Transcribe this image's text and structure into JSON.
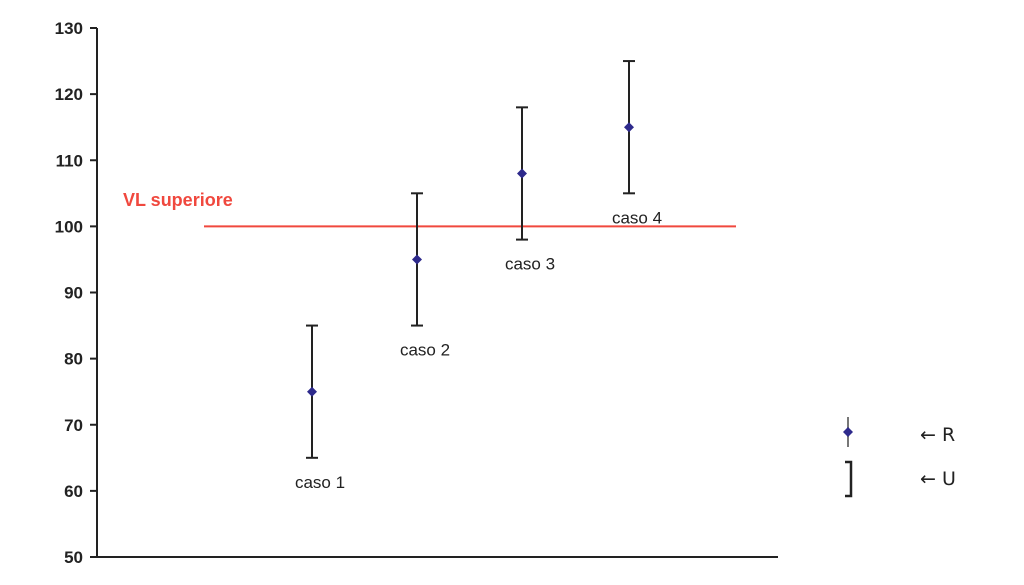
{
  "chart_data": {
    "type": "scatter",
    "title": "",
    "xlabel": "",
    "ylabel": "",
    "ylim": [
      50,
      130
    ],
    "yticks": [
      "50",
      "60",
      "70",
      "80",
      "90",
      "100",
      "110",
      "120",
      "130"
    ],
    "grid": false,
    "points": [
      {
        "label": "caso 1",
        "value": 75,
        "lower": 65,
        "upper": 85
      },
      {
        "label": "caso 2",
        "value": 95,
        "lower": 85,
        "upper": 105
      },
      {
        "label": "caso 3",
        "value": 108,
        "lower": 98,
        "upper": 118
      },
      {
        "label": "caso 4",
        "value": 115,
        "lower": 105,
        "upper": 125
      }
    ],
    "reference_line": {
      "label": "VL superiore",
      "value": 100,
      "color": "#f0483e"
    },
    "marker_color": "#2e2a8c",
    "errorbar_color": "#222222",
    "legend": {
      "placement": "right",
      "entries": [
        {
          "symbol": "point-marker",
          "text": "← R"
        },
        {
          "symbol": "bracket",
          "text": "← U"
        }
      ]
    }
  }
}
